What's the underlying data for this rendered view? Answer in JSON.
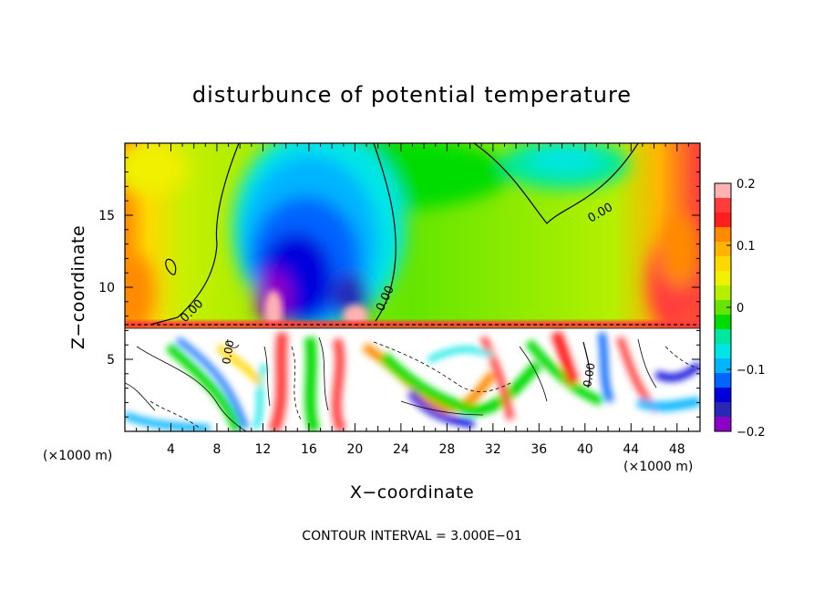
{
  "chart_data": {
    "type": "heatmap",
    "title": "disturbunce of potential temperature",
    "xlabel": "X−coordinate",
    "ylabel": "Z−coordinate",
    "x_unit_label_left": "(×1000 m)",
    "x_unit_label_right": "(×1000 m)",
    "xlim": [
      0,
      50
    ],
    "ylim": [
      0,
      20
    ],
    "xticks": [
      4,
      8,
      12,
      16,
      20,
      24,
      28,
      32,
      36,
      40,
      44,
      48
    ],
    "yticks": [
      5,
      10,
      15
    ],
    "colorbar": {
      "range": [
        -0.2,
        0.2
      ],
      "ticks": [
        0.2,
        0.1,
        0,
        -0.1,
        -0.2
      ],
      "tick_labels": [
        "0.2",
        "0.1",
        "0",
        "−0.1",
        "−0.2"
      ],
      "colors": [
        "#ffb2b2",
        "#ff3c3c",
        "#ff1e1e",
        "#ff8a00",
        "#ffb400",
        "#ffd800",
        "#f0f000",
        "#b4f000",
        "#64e600",
        "#00dc00",
        "#00e8a0",
        "#00e6e6",
        "#00b4ff",
        "#0064ff",
        "#0000dc",
        "#2828b4",
        "#8c00c8"
      ]
    },
    "contour_labels": [
      "0.00",
      "0.00",
      "0.00",
      "0.00",
      "0.00"
    ],
    "contour_interval_text": "CONTOUR INTERVAL = 3.000E−01"
  }
}
